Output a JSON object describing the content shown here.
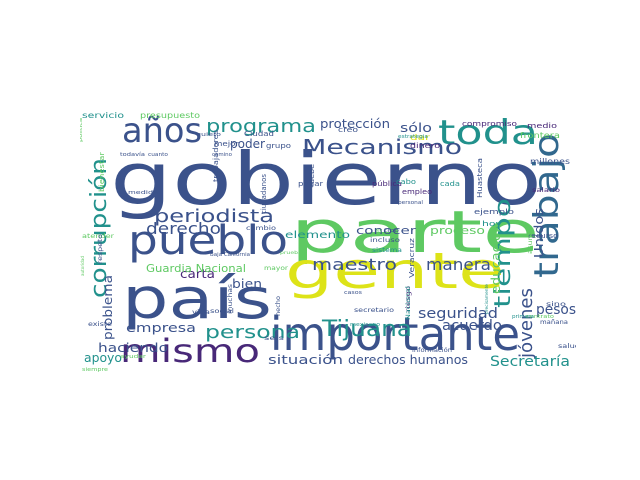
{
  "palette": {
    "dark_blue": "#3b528b",
    "indigo": "#482878",
    "purple": "#440154",
    "teal": "#21918c",
    "green": "#5ec962",
    "yellow": "#dde318",
    "aqua": "#2a9d8f",
    "slate": "#31688e"
  },
  "words": [
    {
      "text": "gobierno"
    },
    {
      "text": "parte"
    },
    {
      "text": "gente"
    },
    {
      "text": "país"
    },
    {
      "text": "importante"
    },
    {
      "text": "mismo"
    },
    {
      "text": "pueblo"
    },
    {
      "text": "trabajo"
    },
    {
      "text": "toda"
    },
    {
      "text": "años"
    },
    {
      "text": "Mecanismo"
    },
    {
      "text": "programa"
    },
    {
      "text": "periodista"
    },
    {
      "text": "corrupción"
    },
    {
      "text": "tiempo"
    },
    {
      "text": "Tijuana"
    },
    {
      "text": "jóvenes"
    },
    {
      "text": "persona"
    },
    {
      "text": "derecho"
    },
    {
      "text": "maestro"
    },
    {
      "text": "manera"
    },
    {
      "text": "seguridad"
    },
    {
      "text": "pesos"
    },
    {
      "text": "acuerdo"
    },
    {
      "text": "Secretaría"
    },
    {
      "text": "derechos humanos"
    },
    {
      "text": "situación"
    },
    {
      "text": "haciendo"
    },
    {
      "text": "apoyo"
    },
    {
      "text": "empresa"
    },
    {
      "text": "problema"
    },
    {
      "text": "protección"
    },
    {
      "text": "sólo"
    },
    {
      "text": "poder"
    },
    {
      "text": "carta"
    },
    {
      "text": "bien"
    },
    {
      "text": "elemento"
    },
    {
      "text": "conocer"
    },
    {
      "text": "proceso"
    },
    {
      "text": "educación"
    },
    {
      "text": "Unidos"
    },
    {
      "text": "Guardia Nacional"
    },
    {
      "text": "servicio"
    },
    {
      "text": "presupuesto"
    },
    {
      "text": "compromiso"
    },
    {
      "text": "medio"
    },
    {
      "text": "frontera"
    },
    {
      "text": "millones"
    },
    {
      "text": "Huasteca"
    },
    {
      "text": "Veracruz"
    },
    {
      "text": "bienestar"
    },
    {
      "text": "trabajadores"
    },
    {
      "text": "ciudadanos"
    },
    {
      "text": "Ciudad"
    },
    {
      "text": "grupo"
    },
    {
      "text": "creo"
    },
    {
      "text": "dinero"
    },
    {
      "text": "dar"
    },
    {
      "text": "pública"
    },
    {
      "text": "cabo"
    },
    {
      "text": "empleo"
    },
    {
      "text": "cada"
    },
    {
      "text": "debe"
    },
    {
      "text": "pagar"
    },
    {
      "text": "mejor"
    },
    {
      "text": "quiero"
    },
    {
      "text": "medida"
    },
    {
      "text": "cambio"
    },
    {
      "text": "atender"
    },
    {
      "text": "respeto"
    },
    {
      "text": "mayor"
    },
    {
      "text": "vida"
    },
    {
      "text": "muchas"
    },
    {
      "text": "social"
    },
    {
      "text": "hecho"
    },
    {
      "text": "seis"
    },
    {
      "text": "existe"
    },
    {
      "text": "ayudar"
    },
    {
      "text": "siempre"
    },
    {
      "text": "incluso"
    },
    {
      "text": "sistema"
    },
    {
      "text": "secretario"
    },
    {
      "text": "casos"
    },
    {
      "text": "riesgo"
    },
    {
      "text": "Nacional"
    },
    {
      "text": "información"
    },
    {
      "text": "ejemplo"
    },
    {
      "text": "hoy"
    },
    {
      "text": "recurso"
    },
    {
      "text": "asunto"
    },
    {
      "text": "sino"
    },
    {
      "text": "mañana"
    },
    {
      "text": "salud"
    },
    {
      "text": "contrato"
    },
    {
      "text": "tipo"
    },
    {
      "text": "Baja California"
    },
    {
      "text": "política"
    },
    {
      "text": "personal"
    },
    {
      "text": "estrategia"
    },
    {
      "text": "todavía"
    },
    {
      "text": "cuanto"
    },
    {
      "text": "camino"
    },
    {
      "text": "autoridad"
    },
    {
      "text": "garantizar"
    },
    {
      "text": "mexicano"
    },
    {
      "text": "precisamente"
    },
    {
      "text": "primera"
    },
    {
      "text": "ley"
    },
    {
      "text": "puesto"
    },
    {
      "text": "salario"
    },
    {
      "text": "pruebas"
    }
  ]
}
